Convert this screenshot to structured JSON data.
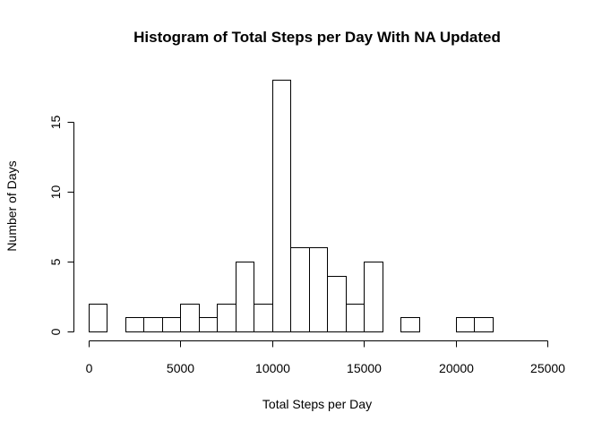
{
  "chart_data": {
    "type": "bar",
    "title": "Histogram of Total Steps per Day With NA Updated",
    "xlabel": "Total Steps per Day",
    "ylabel": "Number of Days",
    "bin_width": 1000,
    "xlim": [
      0,
      25000
    ],
    "ylim": [
      0,
      18
    ],
    "x_ticks": [
      0,
      5000,
      10000,
      15000,
      20000,
      25000
    ],
    "x_tick_labels": [
      "0",
      "5000",
      "10000",
      "15000",
      "20000",
      "25000"
    ],
    "y_ticks": [
      0,
      5,
      10,
      15
    ],
    "y_tick_labels": [
      "0",
      "5",
      "10",
      "15"
    ],
    "bins": [
      {
        "start": 0,
        "end": 1000,
        "count": 2
      },
      {
        "start": 1000,
        "end": 2000,
        "count": 0
      },
      {
        "start": 2000,
        "end": 3000,
        "count": 1
      },
      {
        "start": 3000,
        "end": 4000,
        "count": 1
      },
      {
        "start": 4000,
        "end": 5000,
        "count": 1
      },
      {
        "start": 5000,
        "end": 6000,
        "count": 2
      },
      {
        "start": 6000,
        "end": 7000,
        "count": 1
      },
      {
        "start": 7000,
        "end": 8000,
        "count": 2
      },
      {
        "start": 8000,
        "end": 9000,
        "count": 5
      },
      {
        "start": 9000,
        "end": 10000,
        "count": 2
      },
      {
        "start": 10000,
        "end": 11000,
        "count": 18
      },
      {
        "start": 11000,
        "end": 12000,
        "count": 6
      },
      {
        "start": 12000,
        "end": 13000,
        "count": 6
      },
      {
        "start": 13000,
        "end": 14000,
        "count": 4
      },
      {
        "start": 14000,
        "end": 15000,
        "count": 2
      },
      {
        "start": 15000,
        "end": 16000,
        "count": 5
      },
      {
        "start": 16000,
        "end": 17000,
        "count": 0
      },
      {
        "start": 17000,
        "end": 18000,
        "count": 1
      },
      {
        "start": 18000,
        "end": 19000,
        "count": 0
      },
      {
        "start": 19000,
        "end": 20000,
        "count": 0
      },
      {
        "start": 20000,
        "end": 21000,
        "count": 1
      },
      {
        "start": 21000,
        "end": 22000,
        "count": 1
      },
      {
        "start": 22000,
        "end": 23000,
        "count": 0
      },
      {
        "start": 23000,
        "end": 24000,
        "count": 0
      },
      {
        "start": 24000,
        "end": 25000,
        "count": 0
      }
    ],
    "grid": false,
    "legend": "none",
    "colors": {
      "bar_fill": "#ffffff",
      "bar_stroke": "#000000",
      "text": "#000000"
    }
  }
}
